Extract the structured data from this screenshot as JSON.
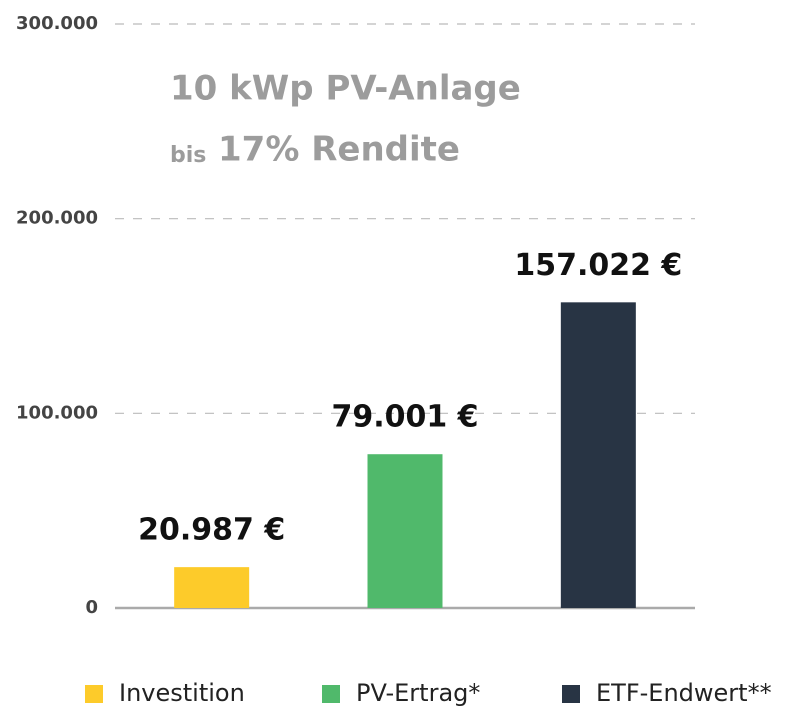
{
  "chart_data": {
    "type": "bar",
    "title": "10 kWp PV-Anlage",
    "subtitle": {
      "prefix": "bis",
      "text": "17% Rendite"
    },
    "categories": [
      null
    ],
    "series": [
      {
        "name": "Investition",
        "color": "#fdcb2a",
        "values": [
          20987
        ],
        "value_labels": [
          "20.987 €"
        ]
      },
      {
        "name": "PV-Ertrag*",
        "color": "#50b96b",
        "values": [
          79001
        ],
        "value_labels": [
          "79.001 €"
        ]
      },
      {
        "name": "ETF-Endwert**",
        "color": "#283444",
        "values": [
          157022
        ],
        "value_labels": [
          "157.022 €"
        ]
      }
    ],
    "ylim": [
      0,
      300000
    ],
    "yticks": [
      0,
      {
        "value": 100000,
        "label": "100.000"
      },
      {
        "value": 200000,
        "label": "200.000"
      },
      {
        "value": 300000,
        "label": "300.000"
      }
    ],
    "grid": true,
    "legend": "bottom"
  }
}
